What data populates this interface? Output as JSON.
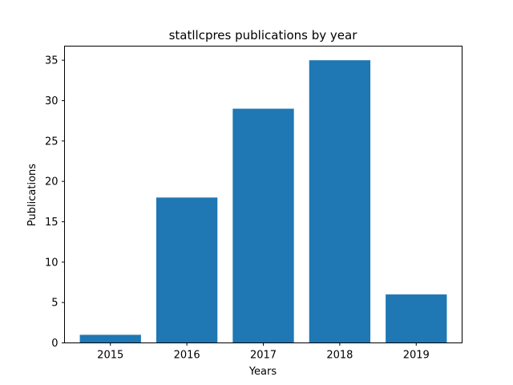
{
  "chart_data": {
    "type": "bar",
    "title": "statllcpres publications by year",
    "xlabel": "Years",
    "ylabel": "Publications",
    "categories": [
      "2015",
      "2016",
      "2017",
      "2018",
      "2019"
    ],
    "values": [
      1,
      18,
      29,
      35,
      6
    ],
    "ylim": [
      0,
      36.75
    ],
    "yticks": [
      0,
      5,
      10,
      15,
      20,
      25,
      30,
      35
    ],
    "bar_color": "#1f77b4",
    "grid": false,
    "legend": false
  }
}
